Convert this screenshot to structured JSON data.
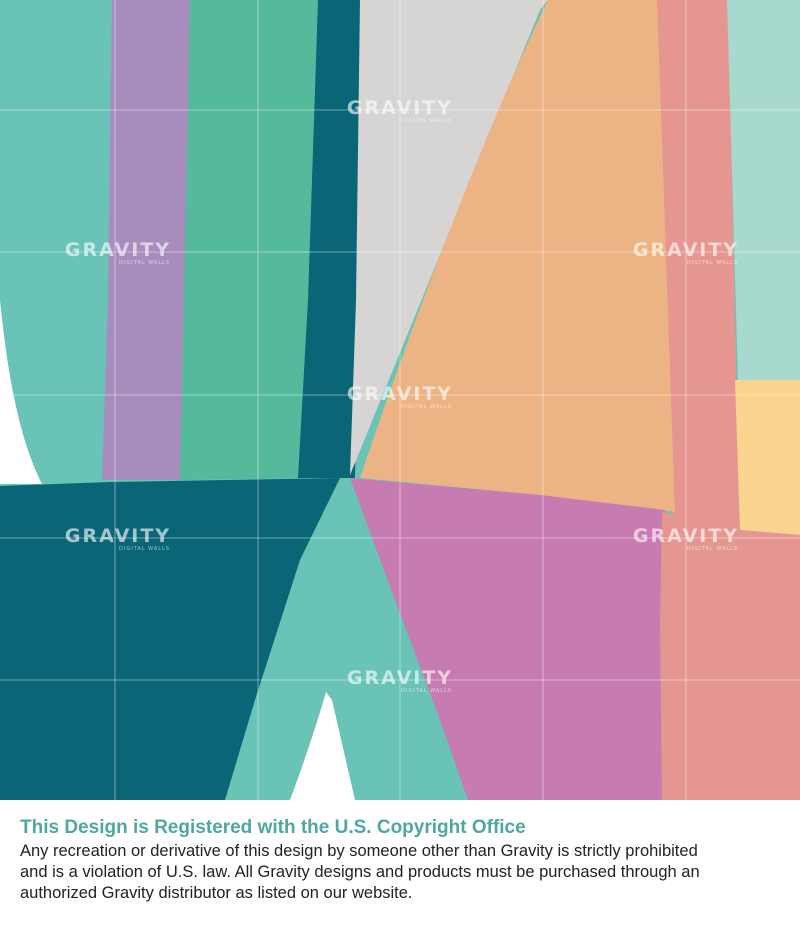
{
  "colors": {
    "teal_light": "#69c3b7",
    "mint_pale": "#a7d9cf",
    "lavender": "#a98cbe",
    "green": "#55b99c",
    "petrol": "#0a6676",
    "gray": "#d6d5d3",
    "orange": "#ecb385",
    "coral": "#e69690",
    "yellow": "#fbd48f",
    "magenta": "#c67bb1",
    "notice_title": "#4fa7a3",
    "notice_body": "#222222"
  },
  "watermark": {
    "brand": "GRAVITY",
    "tagline": "DIGITAL WALLS",
    "icon": "gravity-logo-icon"
  },
  "notice": {
    "title": "This Design is Registered with the U.S. Copyright Office",
    "body": "Any recreation or derivative of this design by someone other than Gravity is strictly prohibited and is a violation of U.S. law. All Gravity designs and products must be purchased through an authorized Gravity distributor as listed on our website."
  }
}
